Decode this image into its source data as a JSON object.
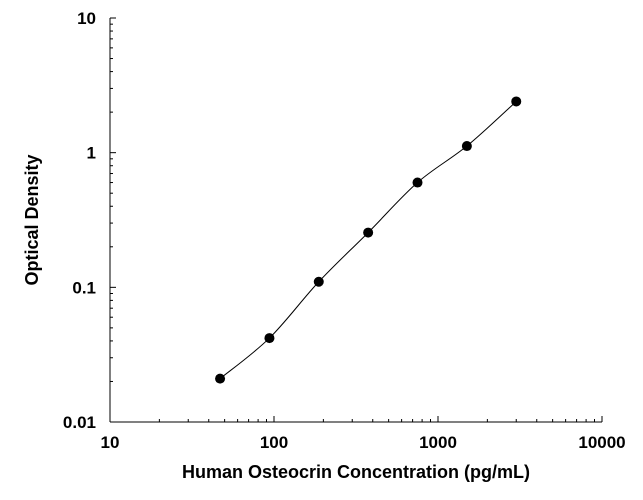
{
  "chart_data": {
    "type": "scatter",
    "title": "",
    "xlabel": "Human Osteocrin Concentration (pg/mL)",
    "ylabel": "Optical Density",
    "x_scale": "log",
    "y_scale": "log",
    "xlim": [
      10,
      10000
    ],
    "ylim": [
      0.01,
      10
    ],
    "x_ticks": [
      "10",
      "100",
      "1000",
      "10000"
    ],
    "y_ticks": [
      "0.01",
      "0.1",
      "1",
      "10"
    ],
    "grid": false,
    "legend": "none",
    "fit": "smooth curve through points",
    "colors": {
      "marker": "#000000",
      "line": "#000000",
      "axis": "#000000"
    },
    "series": [
      {
        "x": [
          46.9,
          93.8,
          187.5,
          375,
          750,
          1500,
          3000
        ],
        "y": [
          0.021,
          0.042,
          0.11,
          0.255,
          0.6,
          1.12,
          2.4
        ]
      }
    ]
  }
}
